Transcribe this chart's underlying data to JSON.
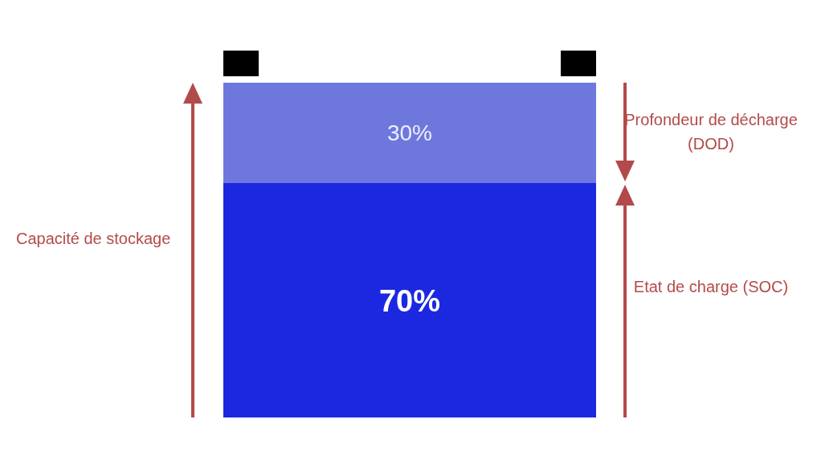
{
  "chart_data": {
    "type": "bar",
    "stacked": true,
    "categories": [
      null
    ],
    "series": [
      {
        "color": "#1c28e0",
        "values": [
          70
        ],
        "value_labels": [
          "70%"
        ]
      },
      {
        "color": "#6e78dc",
        "values": [
          30
        ],
        "value_labels": [
          "30%"
        ]
      }
    ],
    "annotations": [
      "Capacité de stockage",
      "Profondeur de décharge (DOD)",
      "Etat de charge (SOC)"
    ]
  }
}
